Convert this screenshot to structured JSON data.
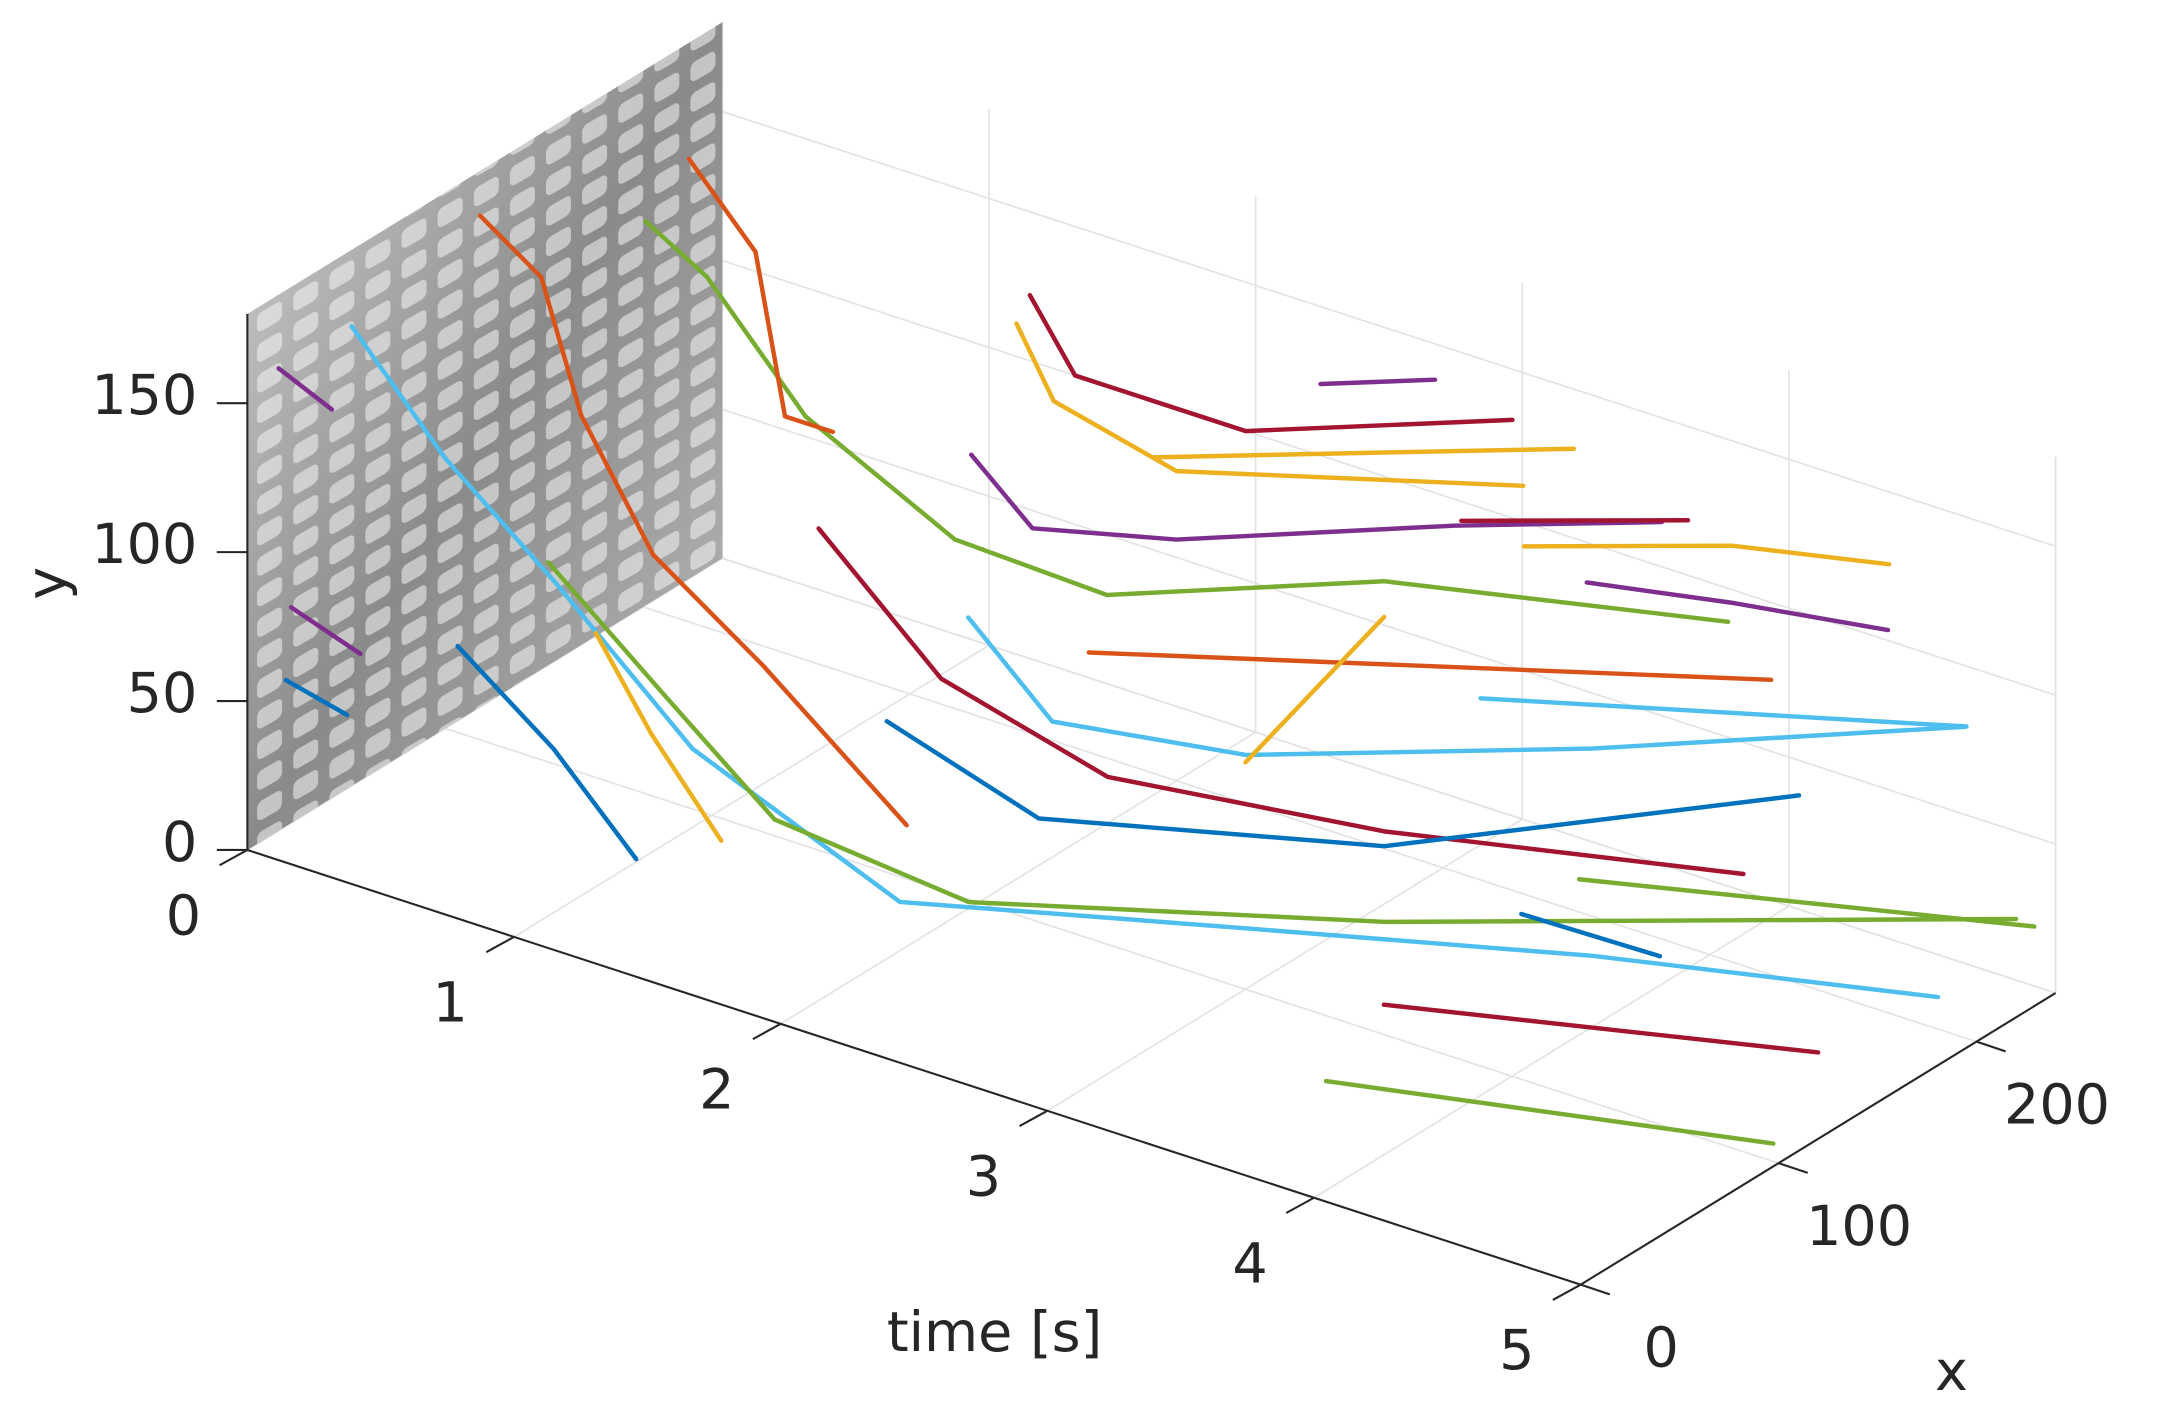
{
  "chart_data": {
    "type": "line3d",
    "t_label": "time [s]",
    "x_label": "x",
    "y_label": "y",
    "tlim": [
      0,
      5
    ],
    "tticks": [
      0,
      1,
      2,
      3,
      4,
      5
    ],
    "xlim": [
      0,
      240
    ],
    "xticks": [
      0,
      100,
      200
    ],
    "ylim": [
      0,
      180
    ],
    "yticks": [
      0,
      50,
      100,
      150
    ],
    "grid": true,
    "series": [
      {
        "color": "#A2142F",
        "t": [
          1.45,
          1.62,
          2.26,
          3.26
        ],
        "x": [
          200,
          200,
          200,
          200
        ],
        "y": [
          147,
          125,
          125,
          158
        ]
      },
      {
        "color": "#7E2F8E",
        "t": [
          2.54,
          2.97
        ],
        "x": [
          200,
          200
        ],
        "y": [
          149,
          163
        ]
      },
      {
        "color": "#EDB120",
        "t": [
          1.4,
          1.54,
          2.0,
          3.3
        ],
        "x": [
          200,
          200,
          200,
          200
        ],
        "y": [
          136,
          114,
          104,
          137
        ]
      },
      {
        "color": "#EDB120",
        "t": [
          1.91,
          2.78,
          3.49
        ],
        "x": [
          200,
          200,
          200
        ],
        "y": [
          106,
          133,
          155
        ]
      },
      {
        "color": "#7E2F8E",
        "t": [
          1.23,
          1.46,
          2.0,
          3.04,
          3.82
        ],
        "x": [
          200,
          200,
          200,
          200,
          200
        ],
        "y": [
          87,
          69,
          81,
          116,
          140
        ]
      },
      {
        "color": "#77AC30",
        "t": [
          0.38,
          0.61,
          0.98,
          1.54,
          2.11,
          3.15,
          4.44
        ],
        "x": [
          150,
          150,
          150,
          150,
          150,
          150,
          150
        ],
        "y": [
          161,
          149,
          113,
          88,
          86,
          121,
          145
        ]
      },
      {
        "color": "#D95319",
        "t": [
          0.32,
          0.57,
          0.68,
          0.86
        ],
        "x": [
          180,
          180,
          180,
          180
        ],
        "y": [
          168,
          144,
          92,
          92
        ]
      },
      {
        "color": "#D95319",
        "t": [
          0.13,
          0.36,
          0.51,
          0.78,
          1.19,
          1.73
        ],
        "x": [
          100,
          100,
          100,
          100,
          100,
          100
        ],
        "y": [
          176,
          162,
          120,
          81,
          56,
          18
        ]
      },
      {
        "color": "#4DBEEE",
        "t": [
          0.02,
          0.37,
          0.71,
          1.15,
          2.15,
          3.15,
          3.93,
          4.93
        ],
        "x": [
          50,
          50,
          60,
          70,
          40,
          80,
          150,
          190
        ],
        "y": [
          156,
          122,
          86,
          39,
          29,
          33,
          18,
          17
        ]
      },
      {
        "color": "#77AC30",
        "t": [
          0.98,
          1.34,
          1.68,
          2.26,
          3.23,
          5.0
        ],
        "x": [
          20,
          30,
          40,
          60,
          140,
          220
        ],
        "y": [
          117,
          79,
          43,
          24,
          13,
          33
        ]
      },
      {
        "color": "#A2142F",
        "t": [
          3.52,
          5.0
        ],
        "x": [
          100,
          120
        ],
        "y": [
          10,
          29
        ]
      },
      {
        "color": "#77AC30",
        "t": [
          3.6,
          4.98
        ],
        "x": [
          60,
          100
        ],
        "y": [
          3,
          6
        ]
      },
      {
        "color": "#0072BD",
        "t": [
          0.07,
          0.3
        ],
        "x": [
          10,
          10
        ],
        "y": [
          55,
          50
        ]
      },
      {
        "color": "#0072BD",
        "t": [
          0.64,
          1.0,
          1.31
        ],
        "x": [
          20,
          20,
          20
        ],
        "y": [
          79,
          55,
          27
        ]
      },
      {
        "color": "#EDB120",
        "t": [
          1.01,
          1.22,
          1.48
        ],
        "x": [
          40,
          40,
          40
        ],
        "y": [
          86,
          58,
          30
        ]
      },
      {
        "color": "#7E2F8E",
        "t": [
          0.08,
          0.28
        ],
        "x": [
          5,
          5
        ],
        "y": [
          162,
          154
        ]
      },
      {
        "color": "#4DBEEE",
        "t": [
          2.11,
          2.35,
          2.78,
          3.78,
          4.81
        ],
        "x": [
          80,
          90,
          130,
          170,
          220
        ],
        "y": [
          107,
          75,
          60,
          75,
          92
        ]
      },
      {
        "color": "#D95319",
        "t": [
          1.82,
          4.23
        ],
        "x": [
          180,
          200
        ],
        "y": [
          46,
          99
        ]
      },
      {
        "color": "#7E2F8E",
        "t": [
          3.39,
          3.93,
          4.52
        ],
        "x": [
          220,
          220,
          220
        ],
        "y": [
          99,
          108,
          116
        ]
      },
      {
        "color": "#EDB120",
        "t": [
          3.08,
          3.86,
          4.45
        ],
        "x": [
          230,
          230,
          230
        ],
        "y": [
          98,
          121,
          132
        ]
      },
      {
        "color": "#A2142F",
        "t": [
          2.92,
          3.77
        ],
        "x": [
          220,
          220
        ],
        "y": [
          106,
          131
        ]
      },
      {
        "color": "#A2142F",
        "t": [
          1.4,
          1.86,
          2.41,
          3.15,
          4.2
        ],
        "x": [
          100,
          100,
          110,
          150,
          190
        ],
        "y": [
          108,
          71,
          50,
          37,
          37
        ]
      },
      {
        "color": "#77AC30",
        "t": [
          3.51,
          4.92
        ],
        "x": [
          200,
          240
        ],
        "y": [
          11,
          20
        ]
      },
      {
        "color": "#0072BD",
        "t": [
          3.59,
          4.11
        ],
        "x": [
          160,
          160
        ],
        "y": [
          18,
          19
        ]
      },
      {
        "color": "#0072BD",
        "t": [
          1.73,
          2.3,
          3.15,
          4.26
        ],
        "x": [
          90,
          90,
          150,
          210
        ],
        "y": [
          57,
          41,
          32,
          57
        ]
      },
      {
        "color": "#EDB120",
        "t": [
          2.63,
          3.15
        ],
        "x": [
          150,
          150
        ],
        "y": [
          45,
          109
        ]
      },
      {
        "color": "#4DBEEE",
        "t": [
          3.14,
          4.74
        ],
        "x": [
          200,
          230
        ],
        "y": [
          61,
          86
        ]
      },
      {
        "color": "#7E2F8E",
        "t": [
          0.09,
          0.35
        ],
        "x": [
          10,
          10
        ],
        "y": [
          80,
          72
        ]
      }
    ]
  }
}
